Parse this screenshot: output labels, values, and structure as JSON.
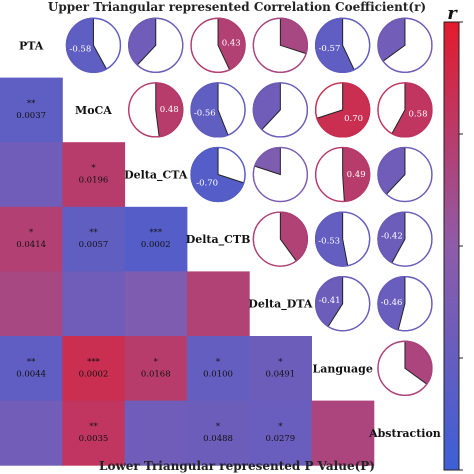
{
  "chart_data": {
    "type": "heatmap",
    "title": "Upper Triangular represented Correlation Coefficient(r)",
    "xlabel": "Lower Triangular represented P Value(P)",
    "variables": [
      "PTA",
      "MoCA",
      "Delta_CTA",
      "Delta_CTB",
      "Delta_DTA",
      "Language",
      "Abstraction"
    ],
    "legend": {
      "title": "r",
      "range": [
        -1,
        1
      ],
      "position": "right"
    },
    "colors": {
      "negative": "#3d5fd6",
      "neutral": "#8e5ca8",
      "positive": "#e41a2c"
    },
    "upper": [
      {
        "row": 0,
        "col": 1,
        "r": -0.58,
        "label": "-0.58"
      },
      {
        "row": 0,
        "col": 2,
        "r": -0.38,
        "label": ""
      },
      {
        "row": 0,
        "col": 3,
        "r": 0.43,
        "label": "0.43"
      },
      {
        "row": 0,
        "col": 4,
        "r": 0.3,
        "label": ""
      },
      {
        "row": 0,
        "col": 5,
        "r": -0.57,
        "label": "-0.57"
      },
      {
        "row": 0,
        "col": 6,
        "r": -0.35,
        "label": ""
      },
      {
        "row": 1,
        "col": 2,
        "r": 0.48,
        "label": "0.48"
      },
      {
        "row": 1,
        "col": 3,
        "r": -0.56,
        "label": "-0.56"
      },
      {
        "row": 1,
        "col": 4,
        "r": -0.38,
        "label": ""
      },
      {
        "row": 1,
        "col": 5,
        "r": 0.7,
        "label": "0.70"
      },
      {
        "row": 1,
        "col": 6,
        "r": 0.58,
        "label": "0.58"
      },
      {
        "row": 2,
        "col": 3,
        "r": -0.7,
        "label": "-0.70"
      },
      {
        "row": 2,
        "col": 4,
        "r": -0.2,
        "label": ""
      },
      {
        "row": 2,
        "col": 5,
        "r": 0.49,
        "label": "0.49"
      },
      {
        "row": 2,
        "col": 6,
        "r": -0.38,
        "label": ""
      },
      {
        "row": 3,
        "col": 4,
        "r": 0.4,
        "label": ""
      },
      {
        "row": 3,
        "col": 5,
        "r": -0.53,
        "label": "-0.53"
      },
      {
        "row": 3,
        "col": 6,
        "r": -0.42,
        "label": "-0.42"
      },
      {
        "row": 4,
        "col": 5,
        "r": -0.41,
        "label": "-0.41"
      },
      {
        "row": 4,
        "col": 6,
        "r": -0.46,
        "label": "-0.46"
      },
      {
        "row": 5,
        "col": 6,
        "r": 0.35,
        "label": ""
      }
    ],
    "lower": [
      {
        "row": 1,
        "col": 0,
        "r": -0.58,
        "stars": "**",
        "p": "0.0037"
      },
      {
        "row": 2,
        "col": 0,
        "r": -0.38,
        "stars": "",
        "p": ""
      },
      {
        "row": 2,
        "col": 1,
        "r": 0.48,
        "stars": "*",
        "p": "0.0196"
      },
      {
        "row": 3,
        "col": 0,
        "r": 0.43,
        "stars": "*",
        "p": "0.0414"
      },
      {
        "row": 3,
        "col": 1,
        "r": -0.56,
        "stars": "**",
        "p": "0.0057"
      },
      {
        "row": 3,
        "col": 2,
        "r": -0.7,
        "stars": "***",
        "p": "0.0002"
      },
      {
        "row": 4,
        "col": 0,
        "r": 0.3,
        "stars": "",
        "p": ""
      },
      {
        "row": 4,
        "col": 1,
        "r": -0.38,
        "stars": "",
        "p": ""
      },
      {
        "row": 4,
        "col": 2,
        "r": -0.2,
        "stars": "",
        "p": ""
      },
      {
        "row": 4,
        "col": 3,
        "r": 0.4,
        "stars": "",
        "p": ""
      },
      {
        "row": 5,
        "col": 0,
        "r": -0.57,
        "stars": "**",
        "p": "0.0044"
      },
      {
        "row": 5,
        "col": 1,
        "r": 0.7,
        "stars": "***",
        "p": "0.0002"
      },
      {
        "row": 5,
        "col": 2,
        "r": 0.49,
        "stars": "*",
        "p": "0.0168"
      },
      {
        "row": 5,
        "col": 3,
        "r": -0.53,
        "stars": "*",
        "p": "0.0100"
      },
      {
        "row": 5,
        "col": 4,
        "r": -0.41,
        "stars": "*",
        "p": "0.0491"
      },
      {
        "row": 6,
        "col": 0,
        "r": -0.35,
        "stars": "",
        "p": ""
      },
      {
        "row": 6,
        "col": 1,
        "r": 0.58,
        "stars": "**",
        "p": "0.0035"
      },
      {
        "row": 6,
        "col": 2,
        "r": -0.38,
        "stars": "",
        "p": ""
      },
      {
        "row": 6,
        "col": 3,
        "r": -0.42,
        "stars": "*",
        "p": "0.0488"
      },
      {
        "row": 6,
        "col": 4,
        "r": -0.46,
        "stars": "*",
        "p": "0.0279"
      },
      {
        "row": 6,
        "col": 5,
        "r": 0.35,
        "stars": "",
        "p": ""
      }
    ]
  }
}
